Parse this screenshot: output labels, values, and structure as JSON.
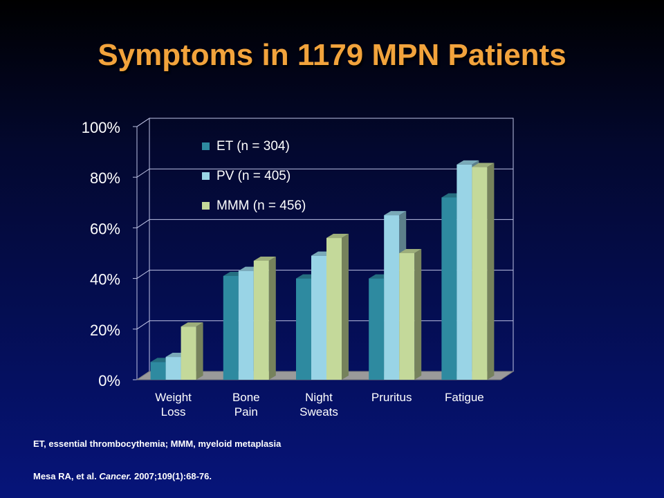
{
  "slide": {
    "title": "Symptoms in 1179 MPN Patients"
  },
  "footnotes": {
    "definitions": "ET, essential thrombocythemia; MMM, myeloid metaplasia",
    "citation_authors": "Mesa RA, et al. ",
    "citation_journal": "Cancer.",
    "citation_rest": " 2007;109(1):68-76."
  },
  "colors": {
    "background": "#06147a",
    "title": "#f2a33c",
    "text": "#ffffff",
    "gridline": "#bfc4e6"
  },
  "chart_data": {
    "type": "bar",
    "title": "",
    "xlabel": "",
    "ylabel": "",
    "ylim": [
      0,
      100
    ],
    "y_unit": "%",
    "yticks": [
      "0%",
      "20%",
      "40%",
      "60%",
      "80%",
      "100%"
    ],
    "grid": true,
    "legend_position": "top-left inside plot",
    "categories": [
      [
        "Weight",
        "Loss"
      ],
      [
        "Bone",
        "Pain"
      ],
      [
        "Night",
        "Sweats"
      ],
      [
        "Pruritus"
      ],
      [
        "Fatigue"
      ]
    ],
    "series": [
      {
        "name": "ET (n = 304)",
        "color": "#2e8aa0",
        "values": [
          7,
          41,
          40,
          40,
          72
        ]
      },
      {
        "name": "PV (n = 405)",
        "color": "#99d4e6",
        "values": [
          9,
          43,
          49,
          65,
          85
        ]
      },
      {
        "name": "MMM (n = 456)",
        "color": "#c4d99a",
        "values": [
          21,
          47,
          56,
          50,
          84
        ]
      }
    ]
  }
}
